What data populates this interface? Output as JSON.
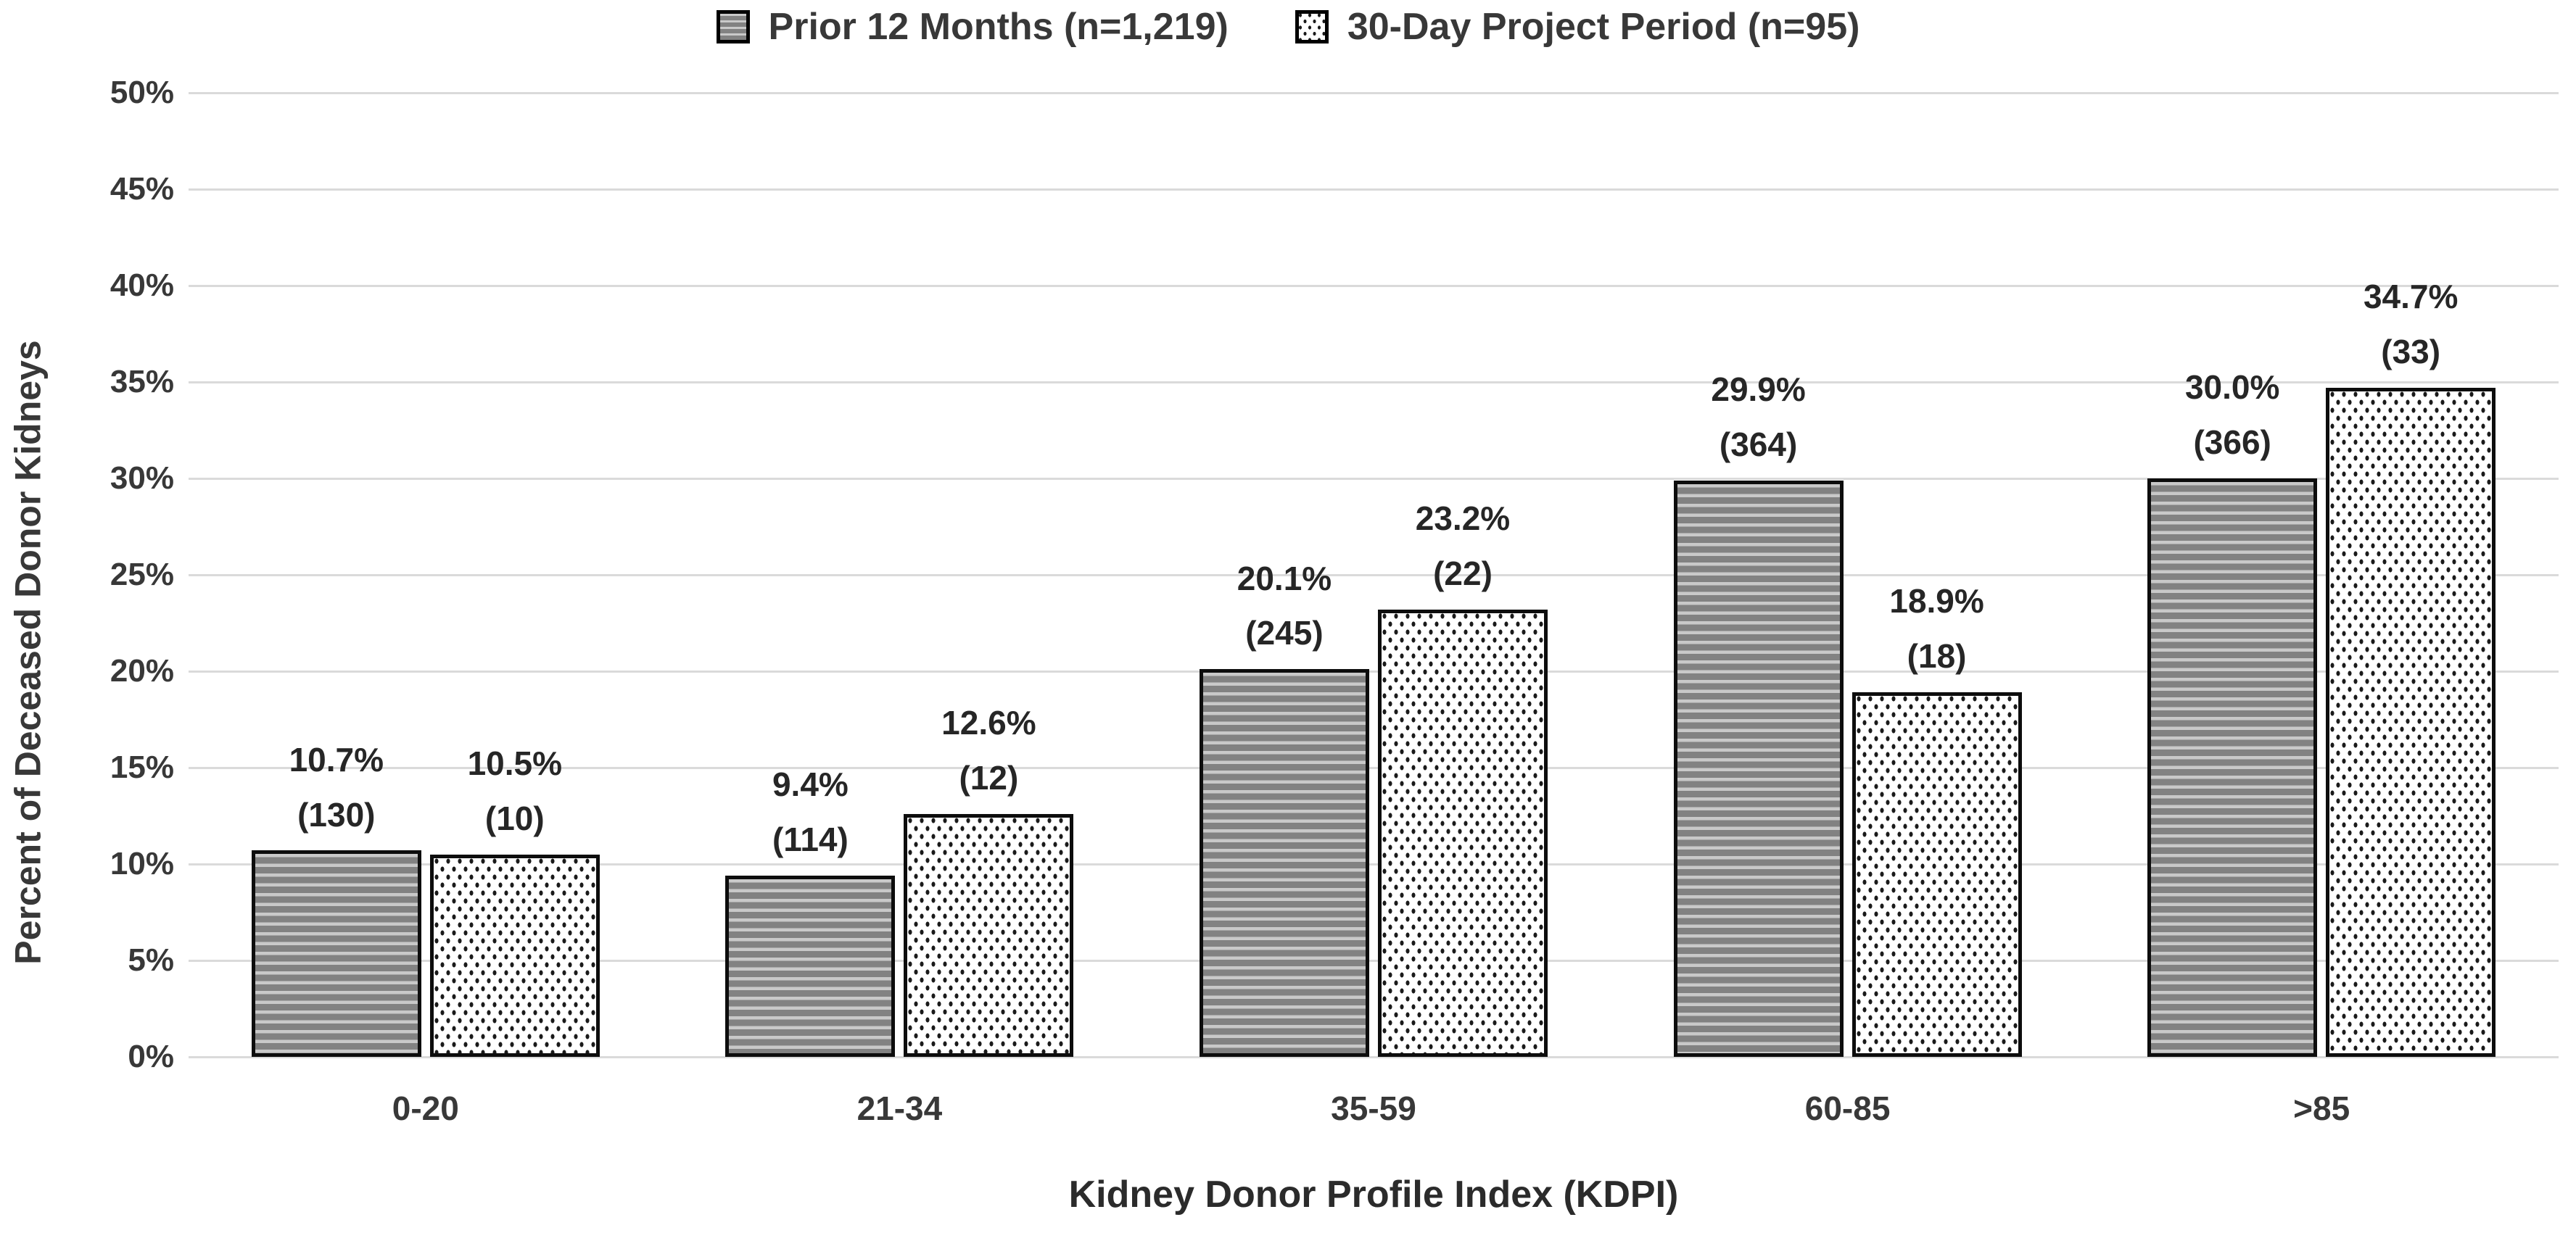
{
  "legend": {
    "items": [
      {
        "label": "Prior 12 Months (n=1,219)",
        "pattern": "striped"
      },
      {
        "label": "30-Day Project Period (n=95)",
        "pattern": "dotted"
      }
    ]
  },
  "y_axis": {
    "title": "Percent of Deceased Donor Kidneys",
    "tick_labels": [
      "50%",
      "45%",
      "40%",
      "35%",
      "30%",
      "25%",
      "20%",
      "15%",
      "10%",
      "5%",
      "0%"
    ]
  },
  "x_axis": {
    "title": "Kidney Donor Profile Index (KDPI)"
  },
  "chart_data": {
    "type": "bar",
    "title": "",
    "categories": [
      "0-20",
      "21-34",
      "35-59",
      "60-85",
      ">85"
    ],
    "series": [
      {
        "name": "Prior 12 Months (n=1,219)",
        "pattern": "striped",
        "values": [
          10.7,
          9.4,
          20.1,
          29.9,
          30.0
        ],
        "counts": [
          130,
          114,
          245,
          364,
          366
        ],
        "value_labels": [
          "10.7%",
          "9.4%",
          "20.1%",
          "29.9%",
          "30.0%"
        ],
        "count_labels": [
          "(130)",
          "(114)",
          "(245)",
          "(364)",
          "(366)"
        ]
      },
      {
        "name": "30-Day Project Period (n=95)",
        "pattern": "dotted",
        "values": [
          10.5,
          12.6,
          23.2,
          18.9,
          34.7
        ],
        "counts": [
          10,
          12,
          22,
          18,
          33
        ],
        "value_labels": [
          "10.5%",
          "12.6%",
          "23.2%",
          "18.9%",
          "34.7%"
        ],
        "count_labels": [
          "(10)",
          "(12)",
          "(22)",
          "(18)",
          "(33)"
        ]
      }
    ],
    "xlabel": "Kidney Donor Profile Index (KDPI)",
    "ylabel": "Percent of Deceased Donor Kidneys",
    "ylim": [
      0,
      50
    ],
    "ytick_step": 5,
    "grid": true,
    "legend_position": "top"
  },
  "colors": {
    "text": "#383838",
    "data_label_text": "#262626",
    "gridline": "#dadada",
    "bar_border": "#0d0d0d",
    "stripe_dark": "#828282",
    "stripe_light": "#c9c9c9",
    "dot": "#1a1a1a",
    "dot_background": "#ffffff"
  }
}
